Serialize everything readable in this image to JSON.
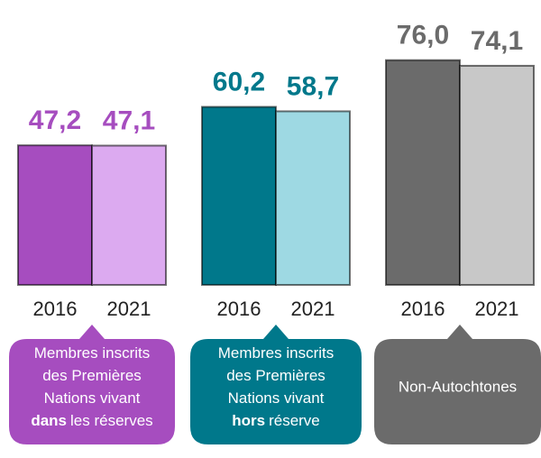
{
  "chart_data": {
    "type": "bar",
    "groups": [
      {
        "label_lines": [
          "Membres inscrits",
          "des Premières",
          "Nations vivant"
        ],
        "label_emphasis": "dans",
        "label_end": "les réserves"
      },
      {
        "label_lines": [
          "Membres inscrits",
          "des Premières",
          "Nations vivant"
        ],
        "label_emphasis": "hors",
        "label_end": "réserve"
      },
      {
        "label_lines": [
          "Non-Autochtones"
        ]
      }
    ],
    "series": [
      {
        "name": "2016",
        "colors": [
          "#a64dbf",
          "#00788b",
          "#6b6b6b"
        ],
        "values": [
          47.2,
          60.2,
          76.0
        ],
        "value_labels": [
          "47,2",
          "60,2",
          "76,0"
        ]
      },
      {
        "name": "2021",
        "colors": [
          "#dcaaf0",
          "#9ed9e3",
          "#c8c8c8"
        ],
        "values": [
          47.1,
          58.7,
          74.1
        ],
        "value_labels": [
          "47,1",
          "58,7",
          "74,1"
        ]
      }
    ]
  }
}
